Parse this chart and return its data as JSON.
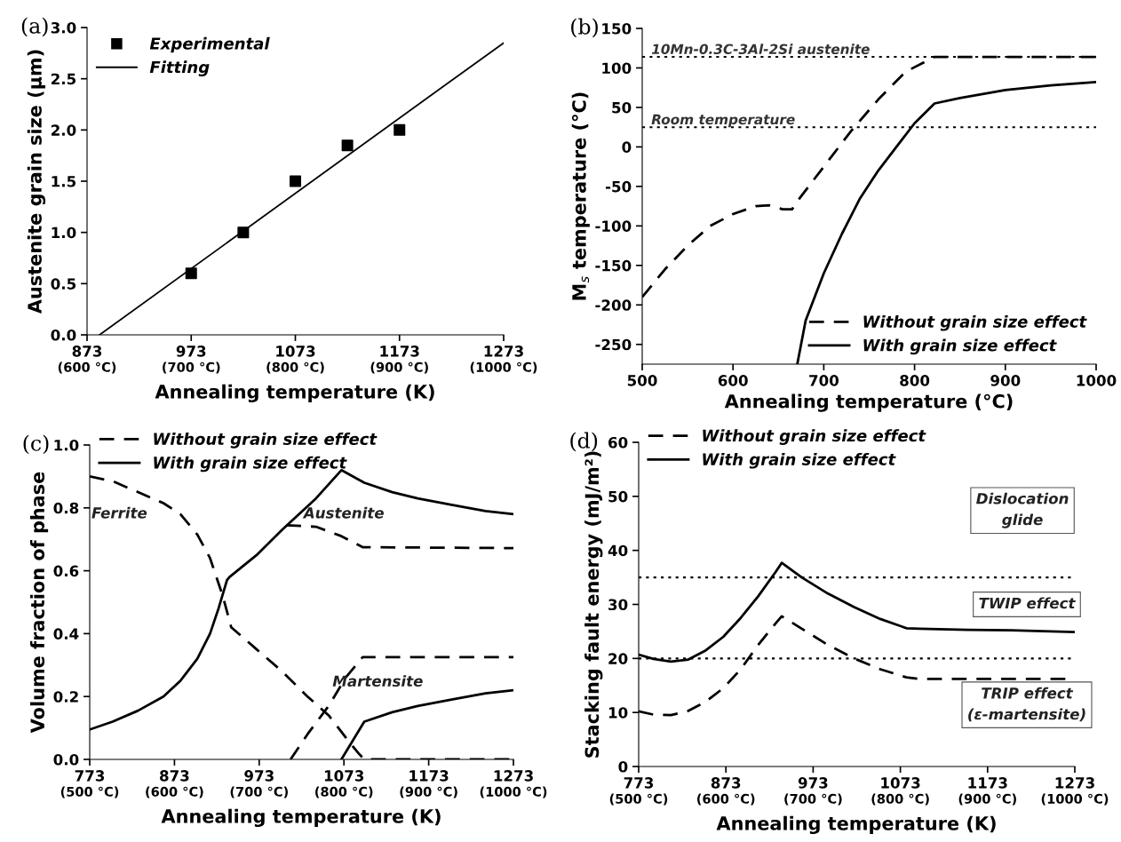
{
  "chart_data": [
    {
      "type": "line",
      "title": "(a)",
      "xlabel": "Annealing temperature (K)",
      "ylabel": "Austenite grain size (μm)",
      "xlim": [
        873,
        1273
      ],
      "ylim": [
        0,
        3.0
      ],
      "xticks": [
        873,
        973,
        1073,
        1173,
        1273
      ],
      "x2lim": [
        600,
        1000
      ],
      "x2ticks": [
        {
          "value": 600,
          "label": "(600 °C)"
        },
        {
          "value": 700,
          "label": "(700 °C)"
        },
        {
          "value": 800,
          "label": "(800 °C)"
        },
        {
          "value": 900,
          "label": "(900 °C)"
        },
        {
          "value": 1000,
          "label": "(1000 °C)"
        }
      ],
      "yticks": [
        {
          "value": 0,
          "label": "0.0"
        },
        {
          "value": 0.5,
          "label": "0.5"
        },
        {
          "value": 1.0,
          "label": "1.0"
        },
        {
          "value": 1.5,
          "label": "1.5"
        },
        {
          "value": 2.0,
          "label": "2.0"
        },
        {
          "value": 2.5,
          "label": "2.5"
        },
        {
          "value": 3.0,
          "label": "3.0"
        }
      ],
      "legend": "top left",
      "series": [
        {
          "name": "Experimental",
          "type": "scatter",
          "marker": "square",
          "color": "#000000",
          "x": [
            973,
            1023,
            1073,
            1123,
            1173
          ],
          "values": [
            0.6,
            1.0,
            1.5,
            1.85,
            2.0
          ]
        },
        {
          "name": "Fitting",
          "type": "line",
          "line_style": "solid",
          "color": "#000000",
          "x": [
            885,
            1273
          ],
          "values": [
            0,
            2.85
          ]
        }
      ]
    },
    {
      "type": "line",
      "title": "(b)",
      "xlabel": "Annealing temperature (°C)",
      "ylabel": "M$_{s}$ temperature (°C)",
      "xlim": [
        500,
        1000
      ],
      "ylim": [
        -275,
        150
      ],
      "xticks": [
        500,
        600,
        700,
        800,
        900,
        1000
      ],
      "yticks": [
        -250,
        -200,
        -150,
        -100,
        -50,
        0,
        50,
        100,
        150
      ],
      "legend": "bottom right",
      "ref_lines": [
        {
          "axis": "y",
          "value": 114,
          "label": "10Mn-0.3C-3Al-2Si austenite",
          "color": "#000000",
          "line_style": "dotted"
        },
        {
          "axis": "y",
          "value": 25,
          "label": "Room temperature",
          "color": "#000000",
          "line_style": "dotted"
        }
      ],
      "series": [
        {
          "name": "Without grain size effect",
          "line_style": "dashed",
          "color": "#000000",
          "x": [
            500,
            525,
            550,
            575,
            600,
            625,
            640,
            655,
            665,
            670,
            700,
            730,
            760,
            790,
            822,
            1000
          ],
          "values": [
            -190,
            -155,
            -125,
            -100,
            -85,
            -75,
            -74,
            -79,
            -79,
            -70,
            -25,
            20,
            60,
            95,
            114,
            114
          ]
        },
        {
          "name": "With grain size effect",
          "line_style": "solid",
          "color": "#000000",
          "x": [
            671,
            680,
            700,
            720,
            740,
            760,
            780,
            800,
            822,
            850,
            900,
            950,
            1000
          ],
          "values": [
            -274,
            -220,
            -160,
            -110,
            -65,
            -30,
            0,
            30,
            55,
            62,
            72,
            78,
            82
          ]
        }
      ]
    },
    {
      "type": "line",
      "title": "(c)",
      "xlabel": "Annealing temperature (K)",
      "ylabel": "Volume fraction of phase",
      "xlim": [
        773,
        1273
      ],
      "ylim": [
        0,
        1.0
      ],
      "xticks": [
        773,
        873,
        973,
        1073,
        1173,
        1273
      ],
      "x2lim": [
        500,
        1000
      ],
      "x2ticks": [
        {
          "value": 500,
          "label": "(500 °C)"
        },
        {
          "value": 600,
          "label": "(600 °C)"
        },
        {
          "value": 700,
          "label": "(700 °C)"
        },
        {
          "value": 800,
          "label": "(800 °C)"
        },
        {
          "value": 900,
          "label": "(900 °C)"
        },
        {
          "value": 1000,
          "label": "(1000 °C)"
        }
      ],
      "yticks": [
        {
          "value": 0,
          "label": "0.0"
        },
        {
          "value": 0.2,
          "label": "0.2"
        },
        {
          "value": 0.4,
          "label": "0.4"
        },
        {
          "value": 0.6,
          "label": "0.6"
        },
        {
          "value": 0.8,
          "label": "0.8"
        },
        {
          "value": 1.0,
          "label": "1.0"
        }
      ],
      "legend": "top left",
      "annotations": [
        "Ferrite",
        "Austenite",
        "Martensite"
      ],
      "series": [
        {
          "name": "Without grain size effect",
          "line_style": "dashed",
          "color": "#000000",
          "x": [
            773,
            800,
            830,
            860,
            880,
            900,
            915,
            930,
            940,
            970,
            1000,
            1030,
            1055,
            1075,
            1090,
            1097,
            1273
          ],
          "values": [
            0.9,
            0.885,
            0.85,
            0.815,
            0.78,
            0.715,
            0.64,
            0.52,
            0.42,
            0.35,
            0.28,
            0.2,
            0.14,
            0.07,
            0.02,
            0,
            0
          ]
        },
        {
          "line_style": "dashed",
          "color": "#000000",
          "x": [
            1005,
            1040,
            1070,
            1095,
            1273
          ],
          "values": [
            0.745,
            0.74,
            0.71,
            0.675,
            0.672
          ]
        },
        {
          "line_style": "dashed",
          "color": "#000000",
          "x": [
            1010,
            1030,
            1055,
            1075,
            1095,
            1273
          ],
          "values": [
            0,
            0.08,
            0.17,
            0.26,
            0.325,
            0.325
          ]
        },
        {
          "name": "With grain size effect",
          "line_style": "solid",
          "color": "#000000",
          "x": [
            773,
            800,
            830,
            860,
            880,
            900,
            915,
            925,
            935,
            938,
            970,
            1000,
            1040,
            1070,
            1097,
            1130,
            1160,
            1200,
            1240,
            1273
          ],
          "values": [
            0.095,
            0.12,
            0.155,
            0.2,
            0.25,
            0.32,
            0.4,
            0.48,
            0.57,
            0.58,
            0.65,
            0.73,
            0.83,
            0.92,
            0.88,
            0.85,
            0.83,
            0.81,
            0.79,
            0.78
          ]
        },
        {
          "line_style": "solid",
          "color": "#000000",
          "x": [
            1070,
            1097,
            1130,
            1160,
            1200,
            1240,
            1273
          ],
          "values": [
            0,
            0.12,
            0.15,
            0.17,
            0.19,
            0.21,
            0.22
          ]
        }
      ]
    },
    {
      "type": "line",
      "title": "(d)",
      "xlabel": "Annealing temperature (K)",
      "ylabel": "Stacking fault energy (mJ/m²)",
      "xlim": [
        773,
        1273
      ],
      "ylim": [
        0,
        60
      ],
      "xticks": [
        773,
        873,
        973,
        1073,
        1173,
        1273
      ],
      "x2lim": [
        500,
        1000
      ],
      "x2ticks": [
        {
          "value": 500,
          "label": "(500 °C)"
        },
        {
          "value": 600,
          "label": "(600 °C)"
        },
        {
          "value": 700,
          "label": "(700 °C)"
        },
        {
          "value": 800,
          "label": "(800 °C)"
        },
        {
          "value": 900,
          "label": "(900 °C)"
        },
        {
          "value": 1000,
          "label": "(1000 °C)"
        }
      ],
      "yticks": [
        0,
        10,
        20,
        30,
        40,
        50,
        60
      ],
      "legend": "top left",
      "ref_lines": [
        {
          "axis": "y",
          "value": 35,
          "color": "#000000",
          "line_style": "dotted"
        },
        {
          "axis": "y",
          "value": 20,
          "color": "#000000",
          "line_style": "dotted"
        }
      ],
      "annotations": [
        "Dislocation\nglide",
        "TWIP effect",
        "TRIP effect\n(ε-martensite)"
      ],
      "series": [
        {
          "name": "Without grain size effect",
          "line_style": "dashed",
          "color": "#000000",
          "x": [
            773,
            790,
            810,
            830,
            850,
            870,
            890,
            910,
            930,
            937,
            960,
            990,
            1020,
            1050,
            1080,
            1095,
            1273
          ],
          "values": [
            10.2,
            9.6,
            9.5,
            10.3,
            12,
            14.5,
            18,
            22.5,
            26.5,
            27.8,
            25.5,
            22.5,
            20,
            18,
            16.5,
            16.2,
            16.2
          ]
        },
        {
          "name": "With grain size effect",
          "line_style": "solid",
          "color": "#000000",
          "x": [
            773,
            790,
            810,
            830,
            850,
            870,
            890,
            910,
            930,
            937,
            960,
            990,
            1020,
            1050,
            1080,
            1095,
            1150,
            1200,
            1273
          ],
          "values": [
            20.7,
            19.9,
            19.4,
            19.8,
            21.5,
            24,
            27.5,
            31.5,
            36,
            37.7,
            35,
            32,
            29.5,
            27.3,
            25.6,
            25.5,
            25.3,
            25.2,
            24.9
          ]
        }
      ]
    }
  ]
}
